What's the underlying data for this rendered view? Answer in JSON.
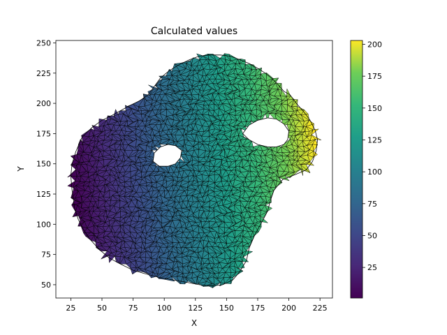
{
  "chart_data": {
    "type": "heatmap",
    "subtype": "triangular mesh (tripcolor with edges)",
    "title": "Calculated values",
    "xlabel": "X",
    "ylabel": "Y",
    "xlim": [
      13,
      235
    ],
    "ylim": [
      39,
      252
    ],
    "xticks": [
      25,
      50,
      75,
      100,
      125,
      150,
      175,
      200,
      225
    ],
    "yticks": [
      50,
      75,
      100,
      125,
      150,
      175,
      200,
      225,
      250
    ],
    "colorbar": {
      "colormap": "viridis",
      "range": [
        1,
        203
      ],
      "ticks": [
        25,
        50,
        75,
        100,
        125,
        150,
        175,
        200
      ]
    },
    "grid": false,
    "outer_boundary": [
      [
        26,
        128
      ],
      [
        25,
        140
      ],
      [
        26,
        150
      ],
      [
        29,
        160
      ],
      [
        34,
        172
      ],
      [
        42,
        180
      ],
      [
        50,
        186
      ],
      [
        58,
        190
      ],
      [
        65,
        194
      ],
      [
        72,
        198
      ],
      [
        80,
        202
      ],
      [
        87,
        207
      ],
      [
        92,
        214
      ],
      [
        97,
        221
      ],
      [
        104,
        227
      ],
      [
        112,
        232
      ],
      [
        120,
        236
      ],
      [
        128,
        239
      ],
      [
        136,
        240
      ],
      [
        145,
        240
      ],
      [
        153,
        239
      ],
      [
        161,
        236
      ],
      [
        168,
        233
      ],
      [
        175,
        229
      ],
      [
        181,
        225
      ],
      [
        186,
        221
      ],
      [
        190,
        217
      ],
      [
        196,
        210
      ],
      [
        201,
        207
      ],
      [
        206,
        200
      ],
      [
        212,
        193
      ],
      [
        217,
        186
      ],
      [
        221,
        178
      ],
      [
        223,
        170
      ],
      [
        222,
        161
      ],
      [
        219,
        152
      ],
      [
        214,
        145
      ],
      [
        205,
        141
      ],
      [
        195,
        137
      ],
      [
        188,
        128
      ],
      [
        185,
        119
      ],
      [
        183,
        111
      ],
      [
        179,
        103
      ],
      [
        173,
        92
      ],
      [
        168,
        80
      ],
      [
        166,
        70
      ],
      [
        160,
        60
      ],
      [
        155,
        54
      ],
      [
        147,
        50
      ],
      [
        138,
        49
      ],
      [
        128,
        50
      ],
      [
        118,
        52
      ],
      [
        107,
        54
      ],
      [
        96,
        56
      ],
      [
        85,
        59
      ],
      [
        75,
        62
      ],
      [
        65,
        67
      ],
      [
        56,
        72
      ],
      [
        48,
        79
      ],
      [
        40,
        88
      ],
      [
        35,
        96
      ],
      [
        31,
        104
      ],
      [
        28,
        113
      ],
      [
        27,
        121
      ]
    ],
    "holes": [
      [
        [
          92,
          159
        ],
        [
          97,
          164
        ],
        [
          103,
          166
        ],
        [
          109,
          165
        ],
        [
          114,
          161
        ],
        [
          113,
          155
        ],
        [
          109,
          150
        ],
        [
          103,
          148
        ],
        [
          96,
          148
        ],
        [
          91,
          152
        ]
      ],
      [
        [
          163,
          175
        ],
        [
          168,
          182
        ],
        [
          175,
          186
        ],
        [
          183,
          188
        ],
        [
          190,
          187
        ],
        [
          196,
          183
        ],
        [
          200,
          177
        ],
        [
          199,
          170
        ],
        [
          196,
          166
        ],
        [
          190,
          164
        ],
        [
          183,
          164
        ],
        [
          175,
          166
        ],
        [
          168,
          170
        ]
      ]
    ],
    "value_field": "roughly linear, increasing with x: min at the left edge (x≈25, y≈145), max at the right edge (x≈222, y≈170)",
    "value_range": [
      1,
      203
    ]
  }
}
